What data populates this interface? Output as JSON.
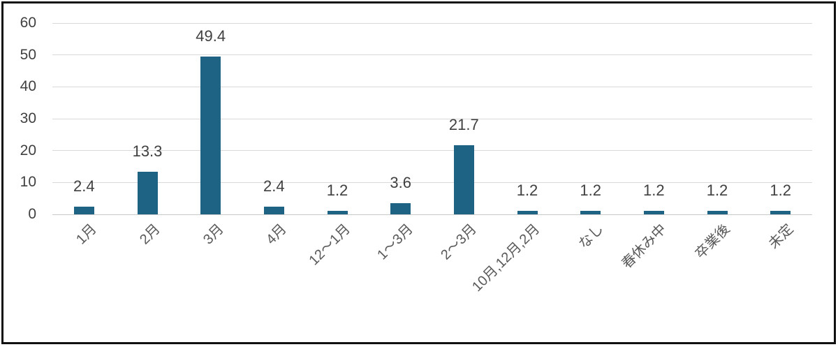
{
  "chart_data": {
    "type": "bar",
    "title": "",
    "xlabel": "",
    "ylabel": "",
    "categories": [
      "1月",
      "2月",
      "3月",
      "4月",
      "12〜1月",
      "1〜3月",
      "2〜3月",
      "10月,12月,2月",
      "なし",
      "春休み中",
      "卒業後",
      "未定"
    ],
    "values": [
      2.4,
      13.3,
      49.4,
      2.4,
      1.2,
      3.6,
      21.7,
      1.2,
      1.2,
      1.2,
      1.2,
      1.2
    ],
    "data_labels": [
      "2.4",
      "13.3",
      "49.4",
      "2.4",
      "1.2",
      "3.6",
      "21.7",
      "1.2",
      "1.2",
      "1.2",
      "1.2",
      "1.2"
    ],
    "ylim": [
      0,
      60
    ],
    "yticks": [
      0,
      10,
      20,
      30,
      40,
      50,
      60
    ],
    "grid": true,
    "legend_position": "none",
    "bar_color": "#1E6284",
    "value_label_color": "#404040",
    "ytick_label_color": "#404040",
    "xtick_label_color": "#595959",
    "gridline_color": "#D9D9D9",
    "frame_color": "#101010"
  }
}
